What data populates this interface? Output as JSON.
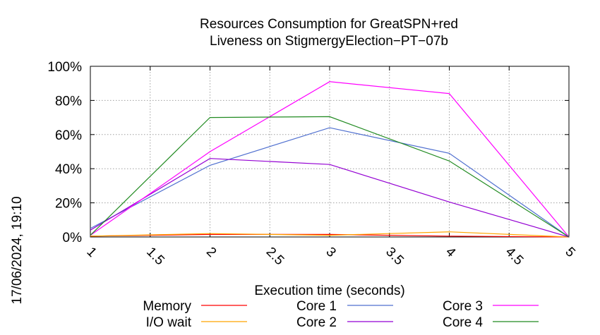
{
  "timestamp": "17/06/2024, 19:10",
  "chart_data": {
    "type": "line",
    "title": "Resources Consumption for GreatSPN+red",
    "subtitle": "Liveness on StigmergyElection−PT−07b",
    "xlabel": "Execution time (seconds)",
    "ylabel": "",
    "xlim": [
      1,
      5
    ],
    "ylim": [
      0,
      100
    ],
    "x_ticks": [
      "1",
      "1.5",
      "2",
      "2.5",
      "3",
      "3.5",
      "4",
      "4.5",
      "5"
    ],
    "y_ticks": [
      "0%",
      "20%",
      "40%",
      "60%",
      "80%",
      "100%"
    ],
    "grid": true,
    "legend_position": "bottom",
    "series": [
      {
        "name": "Memory",
        "color": "#ff0000",
        "x": [
          1,
          2,
          3,
          4,
          5
        ],
        "values": [
          0.5,
          1.5,
          1.5,
          0.5,
          0
        ]
      },
      {
        "name": "I/O wait",
        "color": "#ffa500",
        "x": [
          1,
          2,
          3,
          4,
          5
        ],
        "values": [
          0.5,
          2,
          1,
          3,
          0
        ]
      },
      {
        "name": "Core 1",
        "color": "#4f6fcf",
        "x": [
          1,
          2,
          3,
          4,
          5
        ],
        "values": [
          5,
          42,
          64,
          49,
          0
        ]
      },
      {
        "name": "Core 2",
        "color": "#9400d3",
        "x": [
          1,
          2,
          3,
          4,
          5
        ],
        "values": [
          4,
          46,
          42.5,
          20.5,
          0
        ]
      },
      {
        "name": "Core 3",
        "color": "#ff00ff",
        "x": [
          1,
          2,
          3,
          4,
          5
        ],
        "values": [
          1,
          50,
          91,
          84,
          0
        ]
      },
      {
        "name": "Core 4",
        "color": "#228b22",
        "x": [
          1,
          2,
          3,
          4,
          5
        ],
        "values": [
          1,
          70,
          70.5,
          44.5,
          0
        ]
      }
    ]
  }
}
